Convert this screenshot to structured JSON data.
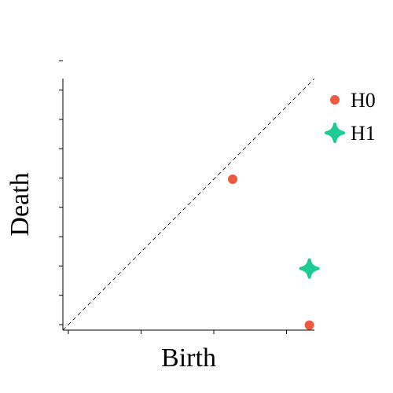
{
  "chart_data": {
    "type": "scatter",
    "title": "",
    "xlabel": "Birth",
    "ylabel": "Death",
    "xlim": [
      0,
      1.0
    ],
    "ylim": [
      0,
      1.0
    ],
    "diagonal": true,
    "grid": false,
    "legend_position": "top-right",
    "x_tick_count": 4,
    "y_tick_count": 10,
    "series": [
      {
        "name": "H0",
        "marker": "circle",
        "color": "#ee5a3f",
        "points": [
          {
            "x": 0.675,
            "y": 0.6
          },
          {
            "x": 0.98,
            "y": 0.02
          }
        ]
      },
      {
        "name": "H1",
        "marker": "plus",
        "color": "#1ccc96",
        "points": [
          {
            "x": 0.98,
            "y": 0.245
          }
        ]
      }
    ]
  }
}
